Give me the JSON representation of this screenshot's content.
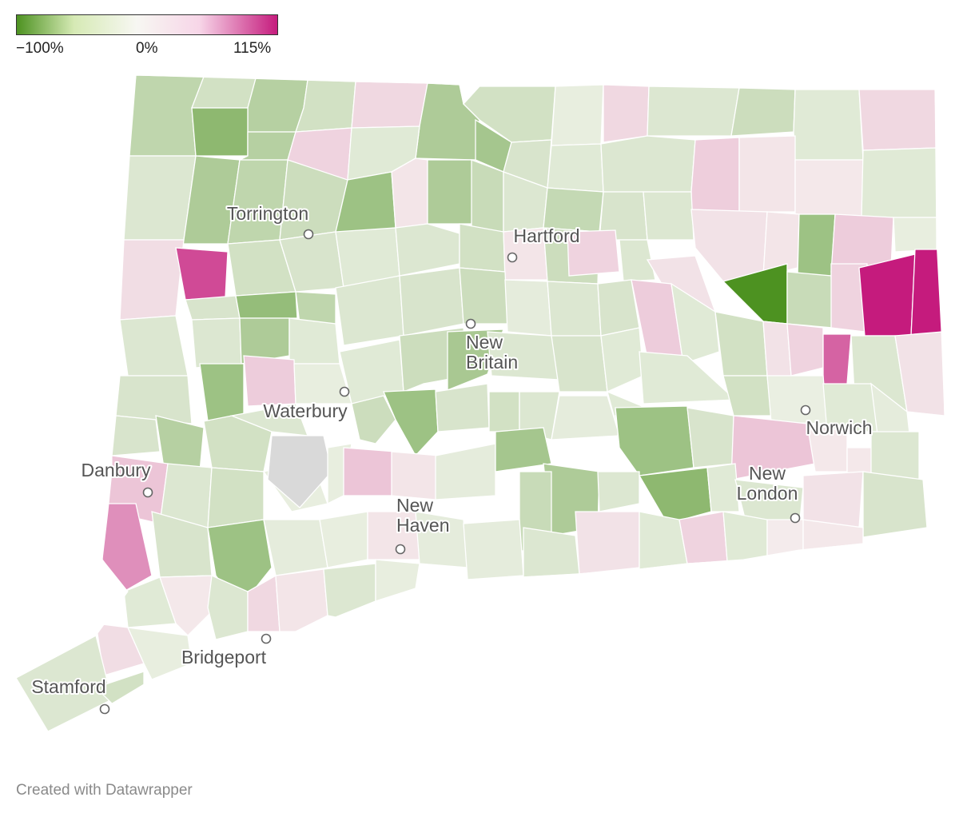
{
  "legend": {
    "min_label": "−100%",
    "mid_label": "0%",
    "max_label": "115%",
    "min_value": -100,
    "max_value": 115,
    "colors": {
      "negative": "#4d9221",
      "neutral": "#f7f7f2",
      "positive": "#c51b7d"
    }
  },
  "map": {
    "region": "Connecticut",
    "cities": [
      {
        "name": "Torrington",
        "lines": [
          "Torrington"
        ]
      },
      {
        "name": "Hartford",
        "lines": [
          "Hartford"
        ]
      },
      {
        "name": "New Britain",
        "lines": [
          "New",
          "Britain"
        ]
      },
      {
        "name": "Waterbury",
        "lines": [
          "Waterbury"
        ]
      },
      {
        "name": "Norwich",
        "lines": [
          "Norwich"
        ]
      },
      {
        "name": "Danbury",
        "lines": [
          "Danbury"
        ]
      },
      {
        "name": "New Haven",
        "lines": [
          "New",
          "Haven"
        ]
      },
      {
        "name": "New London",
        "lines": [
          "New",
          "London"
        ]
      },
      {
        "name": "Bridgeport",
        "lines": [
          "Bridgeport"
        ]
      },
      {
        "name": "Stamford",
        "lines": [
          "Stamford"
        ]
      }
    ]
  },
  "credit": "Created with Datawrapper"
}
